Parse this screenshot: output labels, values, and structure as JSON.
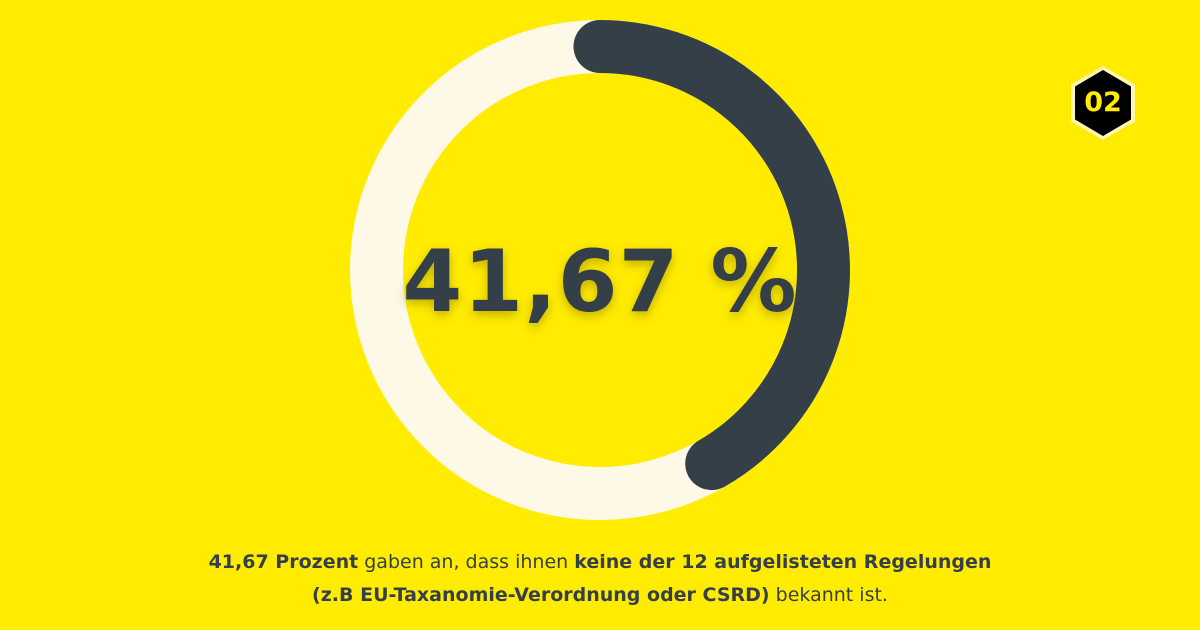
{
  "chart_data": {
    "type": "donut",
    "value_percent": 41.67,
    "center_label": "41,67 %"
  },
  "badge": {
    "label": "02"
  },
  "caption": {
    "part1_bold": "41,67 Prozent",
    "part2": " gaben an, dass ihnen ",
    "part3_bold": "keine der 12 aufgelisteten Regelungen",
    "part4_bold": "(z.B EU-Taxanomie-Verordnung oder CSRD)",
    "part5": " bekannt ist."
  },
  "colors": {
    "background": "#ffec00",
    "track": "#fdf9e6",
    "progress": "#353f47",
    "text": "#353f47",
    "badge_fill": "#000000",
    "badge_border": "#fff7b0"
  }
}
